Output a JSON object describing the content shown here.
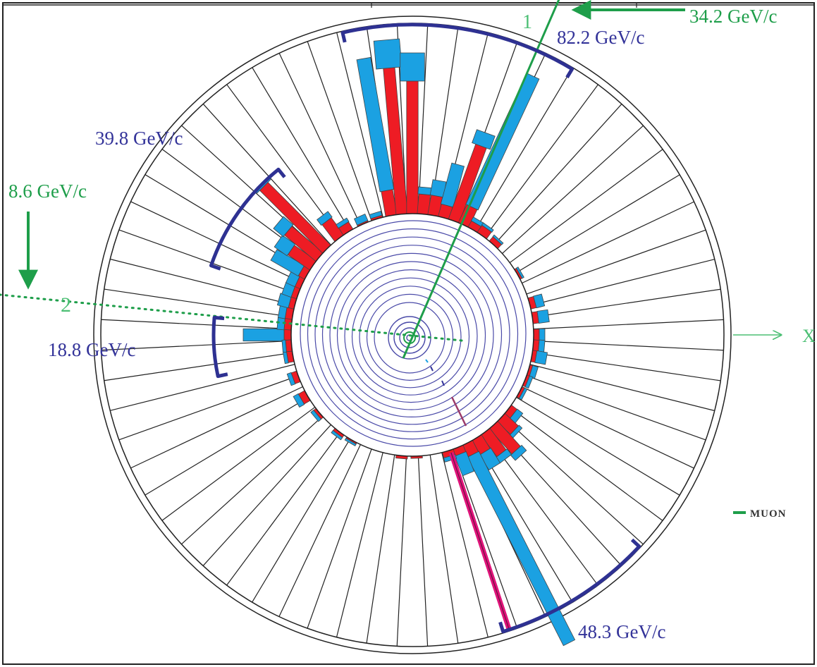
{
  "labels": {
    "jet_top": "82.2 GeV/c",
    "jet_upper_left": "39.8 GeV/c",
    "jet_left": "18.8 GeV/c",
    "jet_bottom": "48.3 GeV/c",
    "muon_1_momentum": "34.2 GeV/c",
    "muon_2_momentum": "8.6 GeV/c",
    "muon_1_index": "1",
    "muon_2_index": "2",
    "x_axis": "X",
    "legend_muon": "MUON"
  },
  "colors": {
    "em_energy": "#ee1c24",
    "hadronic_energy": "#1ba1e2",
    "jet_bracket": "#2e3192",
    "muon_track": "#1e9e4a",
    "electron_track": "#e0147a",
    "drift_chamber": "#4a4aa8"
  },
  "towers": [
    {
      "angle": 180.0,
      "em": 12,
      "had": 58
    },
    {
      "angle": 175.0,
      "em": 12,
      "had": 10
    },
    {
      "angle": 170.0,
      "em": 12,
      "had": 10
    },
    {
      "angle": 165.0,
      "em": 10,
      "had": 16
    },
    {
      "angle": 160.0,
      "em": 10,
      "had": 14
    },
    {
      "angle": 155.0,
      "em": 10,
      "had": 14
    },
    {
      "angle": 150.0,
      "em": 12,
      "had": 45
    },
    {
      "angle": 145.0,
      "em": 40,
      "had": 22
    },
    {
      "angle": 140.0,
      "em": 60,
      "had": 18
    },
    {
      "angle": 135.0,
      "em": 128,
      "had": 5
    },
    {
      "angle": 127.0,
      "em": 32,
      "had": 10
    },
    {
      "angle": 122.0,
      "em": 14,
      "had": 6
    },
    {
      "angle": 114.0,
      "em": 4,
      "had": 10
    },
    {
      "angle": 107.0,
      "em": 5,
      "had": 6
    },
    {
      "angle": 100.0,
      "em": 38,
      "had": 190
    },
    {
      "angle": 95.0,
      "em": 210,
      "had": 40
    },
    {
      "angle": 90.0,
      "em": 190,
      "had": 40
    },
    {
      "angle": 85.0,
      "em": 30,
      "had": 10
    },
    {
      "angle": 80.0,
      "em": 30,
      "had": 22
    },
    {
      "angle": 75.0,
      "em": 20,
      "had": 60
    },
    {
      "angle": 70.0,
      "em": 115,
      "had": 20
    },
    {
      "angle": 65.0,
      "em": 30,
      "had": 205
    },
    {
      "angle": 60.0,
      "em": 12,
      "had": 6
    },
    {
      "angle": 55.0,
      "em": 14,
      "had": 4
    },
    {
      "angle": 48.0,
      "em": 10,
      "had": 3
    },
    {
      "angle": 30.0,
      "em": 5,
      "had": 3
    },
    {
      "angle": 15.0,
      "em": 10,
      "had": 12
    },
    {
      "angle": 8.0,
      "em": 10,
      "had": 15
    },
    {
      "angle": 0.0,
      "em": 10,
      "had": 8
    },
    {
      "angle": -5.0,
      "em": 10,
      "had": 8
    },
    {
      "angle": -10.0,
      "em": 8,
      "had": 15
    },
    {
      "angle": -17.0,
      "em": 6,
      "had": 8
    },
    {
      "angle": -22.0,
      "em": 6,
      "had": 5
    },
    {
      "angle": -28.0,
      "em": 6,
      "had": 4
    },
    {
      "angle": -38.0,
      "em": 12,
      "had": 10
    },
    {
      "angle": -43.0,
      "em": 28,
      "had": 6
    },
    {
      "angle": -48.0,
      "em": 50,
      "had": 10
    },
    {
      "angle": -53.0,
      "em": 40,
      "had": 10
    },
    {
      "angle": -58.0,
      "em": 25,
      "had": 25
    },
    {
      "angle": -63.0,
      "em": 20,
      "had": 300
    },
    {
      "angle": -68.0,
      "em": 12,
      "had": 30
    },
    {
      "angle": -73.0,
      "em": 10,
      "had": 6
    },
    {
      "angle": -88.0,
      "em": 5,
      "had": 0
    },
    {
      "angle": -95.0,
      "em": 6,
      "had": 0
    },
    {
      "angle": -120.0,
      "em": 4,
      "had": 3
    },
    {
      "angle": -127.0,
      "em": 6,
      "had": 4
    },
    {
      "angle": -140.0,
      "em": 6,
      "had": 5
    },
    {
      "angle": -150.0,
      "em": 12,
      "had": 8
    },
    {
      "angle": -160.0,
      "em": 10,
      "had": 6
    },
    {
      "angle": -170.0,
      "em": 10,
      "had": 5
    },
    {
      "angle": -175.0,
      "em": 10,
      "had": 5
    }
  ]
}
